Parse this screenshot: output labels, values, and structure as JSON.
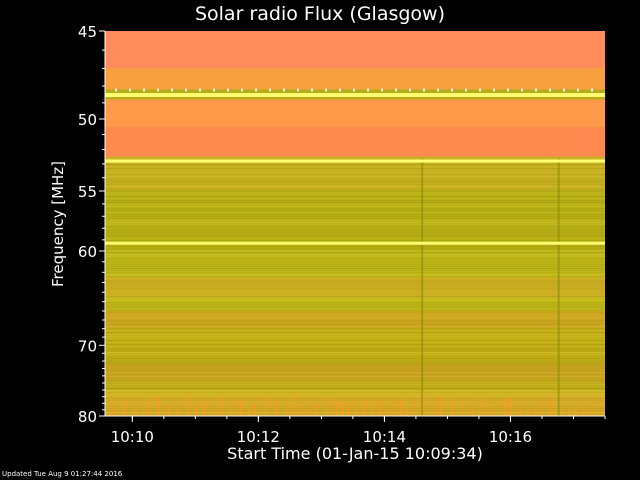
{
  "chart_data": {
    "type": "heatmap",
    "title": "Solar radio Flux (Glasgow)",
    "xlabel": "Start Time (01-Jan-15 10:09:34)",
    "ylabel": "Frequency [MHz]",
    "x_range_minutes": [
      "10:09:34",
      "10:17:30"
    ],
    "x_ticks": [
      "10:10",
      "10:12",
      "10:14",
      "10:16"
    ],
    "y_ticks": [
      45,
      50,
      55,
      60,
      70,
      80
    ],
    "y_range_mhz": [
      45,
      80
    ],
    "y_scale": "reciprocal",
    "bright_lines_mhz": [
      48.5,
      52.8,
      59.3
    ],
    "bands": [
      {
        "from_mhz": 45,
        "to_mhz": 47,
        "color": "#ff8c5a"
      },
      {
        "from_mhz": 47,
        "to_mhz": 48.2,
        "color": "#f7a040"
      },
      {
        "from_mhz": 48.8,
        "to_mhz": 50.5,
        "color": "#ff9a4a"
      },
      {
        "from_mhz": 50.5,
        "to_mhz": 52.5,
        "color": "#ff8a50"
      },
      {
        "from_mhz": 52.5,
        "to_mhz": 55,
        "color": "#c8b020"
      },
      {
        "from_mhz": 55,
        "to_mhz": 60,
        "color": "#b8b014"
      },
      {
        "from_mhz": 60,
        "to_mhz": 66,
        "color": "#c0b818"
      },
      {
        "from_mhz": 66,
        "to_mhz": 72,
        "color": "#c2ac14"
      },
      {
        "from_mhz": 72,
        "to_mhz": 76,
        "color": "#bfa818"
      },
      {
        "from_mhz": 76,
        "to_mhz": 80,
        "color": "#d2b424"
      }
    ]
  },
  "footer": {
    "updated_text": "Updated Tue Aug  9 01:27:44 2016"
  },
  "colors": {
    "background": "#000000",
    "bright_line": "#ffff70",
    "axis": "#ffffff"
  }
}
